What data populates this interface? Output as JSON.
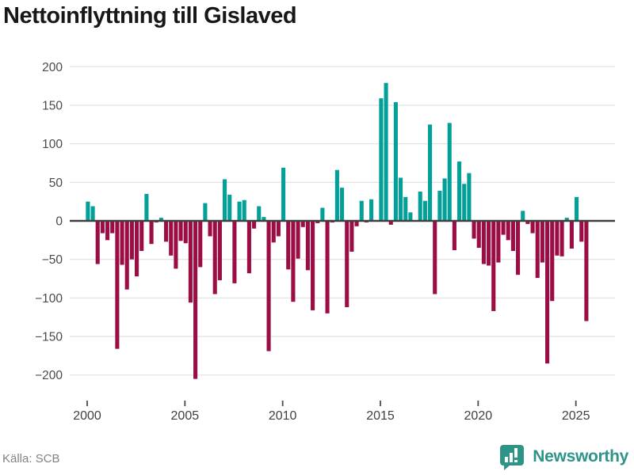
{
  "title": "Nettoinflyttning till Gislaved",
  "source": "Källa: SCB",
  "brand": {
    "name": "Newsworthy",
    "logo_icon": "bar-chart-speech-bubble-icon"
  },
  "colors": {
    "positive_bar": "#03a099",
    "negative_bar": "#9c0d45",
    "gridline": "#e4e4e4",
    "zero_line": "#3f3f3f",
    "axis_label": "#4a4a4a",
    "title_text": "#171717",
    "source_text": "#828282",
    "brand_teal": "#2f9488",
    "background": "#ffffff"
  },
  "chart_data": {
    "type": "bar",
    "title": "Nettoinflyttning till Gislaved",
    "xlabel": "",
    "ylabel": "",
    "period": {
      "start": "2000 Q1",
      "end": "2025 Q3",
      "frequency": "quarterly"
    },
    "values": [
      25,
      19,
      -56,
      -16,
      -25,
      -16,
      -166,
      -57,
      -89,
      -50,
      -72,
      -39,
      35,
      -30,
      -2,
      4,
      -27,
      -45,
      -62,
      -26,
      -29,
      -106,
      -205,
      -60,
      23,
      -20,
      -95,
      -77,
      54,
      34,
      -81,
      25,
      27,
      -68,
      -10,
      19,
      5,
      -169,
      -28,
      -20,
      69,
      -63,
      -105,
      -49,
      -8,
      -64,
      -116,
      -3,
      17,
      -120,
      -2,
      66,
      43,
      -112,
      -40,
      -7,
      26,
      -2,
      28,
      0,
      159,
      179,
      -5,
      154,
      56,
      31,
      11,
      0,
      38,
      26,
      125,
      -95,
      39,
      55,
      127,
      -38,
      77,
      48,
      62,
      -23,
      -35,
      -56,
      -58,
      -117,
      -54,
      -18,
      -25,
      -39,
      -70,
      13,
      -4,
      -16,
      -74,
      -54,
      -185,
      -104,
      -45,
      -46,
      4,
      -36,
      31,
      -27,
      -130
    ],
    "yticks": [
      200,
      150,
      100,
      50,
      0,
      -50,
      -100,
      -150,
      -200
    ],
    "xticks": [
      "2000",
      "2005",
      "2010",
      "2015",
      "2020",
      "2025"
    ],
    "ylim": [
      -225,
      210
    ],
    "grid": true,
    "legend": false
  }
}
